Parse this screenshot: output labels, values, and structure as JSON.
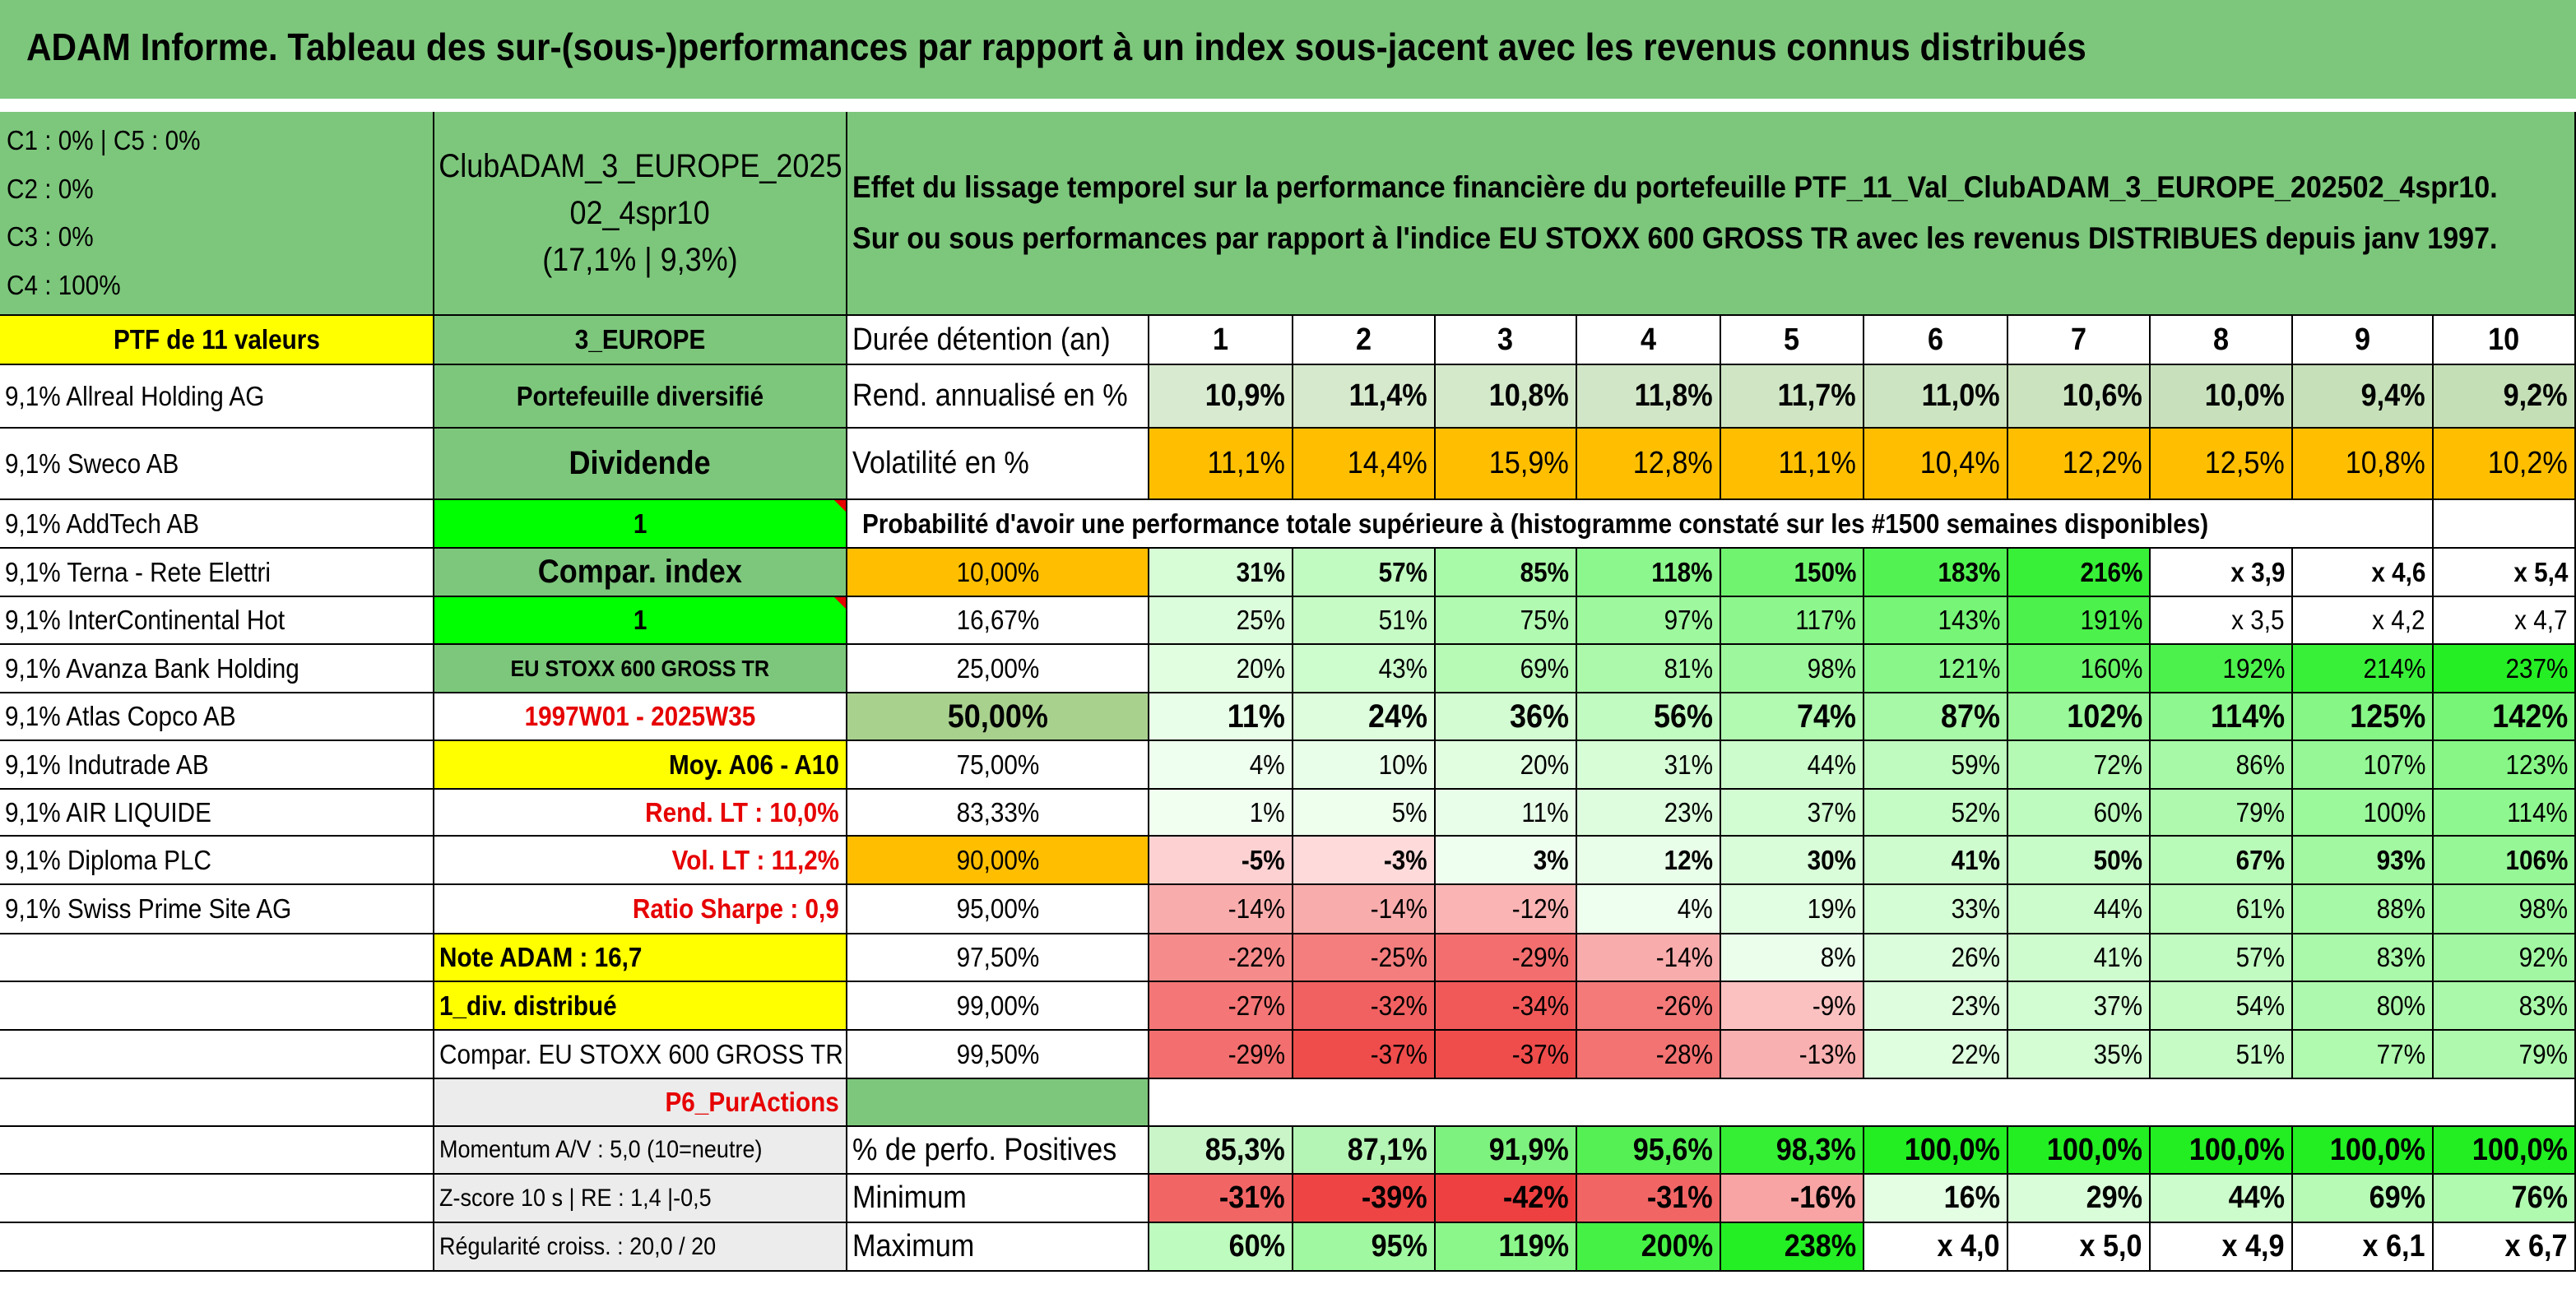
{
  "title": "ADAM Informe. Tableau des sur-(sous-)performances par rapport à un index sous-jacent avec les revenus connus distribués",
  "allocation": [
    "C1 : 0% | C5 : 0%",
    "C2 : 0%",
    "C3 : 0%",
    "C4 : 100%"
  ],
  "allocation_pie": {
    "C1": 0,
    "C2": 0,
    "C3": 0,
    "C4": 100,
    "C5": 0,
    "color": "#ff0000"
  },
  "portfolio_name": [
    "ClubADAM_3_EUROPE_2025",
    "02_4spr10",
    "(17,1% | 9,3%)"
  ],
  "description": [
    "Effet du lissage temporel sur la performance financière du portefeuille PTF_11_Val_ClubADAM_3_EUROPE_202502_4spr10.",
    "Sur ou sous performances par rapport à l'indice EU STOXX 600 GROSS TR avec les revenus DISTRIBUES depuis janv 1997."
  ],
  "ptf_header": "PTF de 11 valeurs",
  "holdings": [
    "9,1% Allreal Holding AG",
    "9,1% Sweco AB",
    "9,1% AddTech AB",
    "9,1% Terna - Rete Elettri",
    "9,1% InterContinental Hot",
    "9,1% Avanza Bank Holding",
    "9,1% Atlas Copco AB",
    "9,1% Indutrade AB",
    "9,1% AIR LIQUIDE",
    "9,1% Diploma PLC",
    "9,1% Swiss Prime Site AG"
  ],
  "params": {
    "region": "3_EUROPE",
    "type": "Portefeuille diversifié",
    "style": "Dividende",
    "value1": "1",
    "compar_index": "Compar. index",
    "value2": "1",
    "index_name": "EU STOXX 600 GROSS TR",
    "period": "1997W01 - 2025W35",
    "moy": "Moy. A06 - A10",
    "rend_lt": "Rend. LT : 10,0%",
    "vol_lt": "Vol. LT : 11,2%",
    "sharpe": "Ratio Sharpe : 0,9",
    "note": "Note ADAM : 16,7",
    "div": "1_div. distribué",
    "compar": "Compar. EU STOXX 600 GROSS TR",
    "p6": "P6_PurActions",
    "momentum": "Momentum A/V : 5,0 (10=neutre)",
    "zscore": "Z-score 10 s | RE : 1,4 |-0,5",
    "regularite": "Régularité croiss. : 20,0 / 20"
  },
  "table": {
    "duration_label": "Durée détention (an)",
    "years": [
      "1",
      "2",
      "3",
      "4",
      "5",
      "6",
      "7",
      "8",
      "9",
      "10"
    ],
    "rend_label": "Rend. annualisé en %",
    "rend": [
      "10,9%",
      "11,4%",
      "10,8%",
      "11,8%",
      "11,7%",
      "11,0%",
      "10,6%",
      "10,0%",
      "9,4%",
      "9,2%"
    ],
    "vol_label": "Volatilité en %",
    "vol": [
      "11,1%",
      "14,4%",
      "15,9%",
      "12,8%",
      "11,1%",
      "10,4%",
      "12,2%",
      "12,5%",
      "10,8%",
      "10,2%"
    ],
    "prob_title": "Probabilité d'avoir une performance totale supérieure à (histogramme constaté sur les #1500 semaines disponibles)",
    "prob_rows": [
      {
        "p": "10,00%",
        "v": [
          "31%",
          "57%",
          "85%",
          "118%",
          "150%",
          "183%",
          "216%",
          "x 3,9",
          "x 4,6",
          "x 5,4"
        ]
      },
      {
        "p": "16,67%",
        "v": [
          "25%",
          "51%",
          "75%",
          "97%",
          "117%",
          "143%",
          "191%",
          "x 3,5",
          "x 4,2",
          "x 4,7"
        ]
      },
      {
        "p": "25,00%",
        "v": [
          "20%",
          "43%",
          "69%",
          "81%",
          "98%",
          "121%",
          "160%",
          "192%",
          "214%",
          "237%"
        ]
      },
      {
        "p": "50,00%",
        "v": [
          "11%",
          "24%",
          "36%",
          "56%",
          "74%",
          "87%",
          "102%",
          "114%",
          "125%",
          "142%"
        ]
      },
      {
        "p": "75,00%",
        "v": [
          "4%",
          "10%",
          "20%",
          "31%",
          "44%",
          "59%",
          "72%",
          "86%",
          "107%",
          "123%"
        ]
      },
      {
        "p": "83,33%",
        "v": [
          "1%",
          "5%",
          "11%",
          "23%",
          "37%",
          "52%",
          "60%",
          "79%",
          "100%",
          "114%"
        ]
      },
      {
        "p": "90,00%",
        "v": [
          "-5%",
          "-3%",
          "3%",
          "12%",
          "30%",
          "41%",
          "50%",
          "67%",
          "93%",
          "106%"
        ]
      },
      {
        "p": "95,00%",
        "v": [
          "-14%",
          "-14%",
          "-12%",
          "4%",
          "19%",
          "33%",
          "44%",
          "61%",
          "88%",
          "98%"
        ]
      },
      {
        "p": "97,50%",
        "v": [
          "-22%",
          "-25%",
          "-29%",
          "-14%",
          "8%",
          "26%",
          "41%",
          "57%",
          "83%",
          "92%"
        ]
      },
      {
        "p": "99,00%",
        "v": [
          "-27%",
          "-32%",
          "-34%",
          "-26%",
          "-9%",
          "23%",
          "37%",
          "54%",
          "80%",
          "83%"
        ]
      },
      {
        "p": "99,50%",
        "v": [
          "-29%",
          "-37%",
          "-37%",
          "-28%",
          "-13%",
          "22%",
          "35%",
          "51%",
          "77%",
          "79%"
        ]
      }
    ],
    "pos_label": "% de perfo. Positives",
    "pos": [
      "85,3%",
      "87,1%",
      "91,9%",
      "95,6%",
      "98,3%",
      "100,0%",
      "100,0%",
      "100,0%",
      "100,0%",
      "100,0%"
    ],
    "min_label": "Minimum",
    "min": [
      "-31%",
      "-39%",
      "-42%",
      "-31%",
      "-16%",
      "16%",
      "29%",
      "44%",
      "69%",
      "76%"
    ],
    "max_label": "Maximum",
    "max": [
      "60%",
      "95%",
      "119%",
      "200%",
      "238%",
      "x 4,0",
      "x 5,0",
      "x 4,9",
      "x 6,1",
      "x 6,7"
    ]
  },
  "colors": {
    "header_green": "#7dc77c",
    "yellow": "#ffff00",
    "bright_green": "#00ff00",
    "orange": "#ffbf00",
    "light_gray": "#ececec"
  }
}
